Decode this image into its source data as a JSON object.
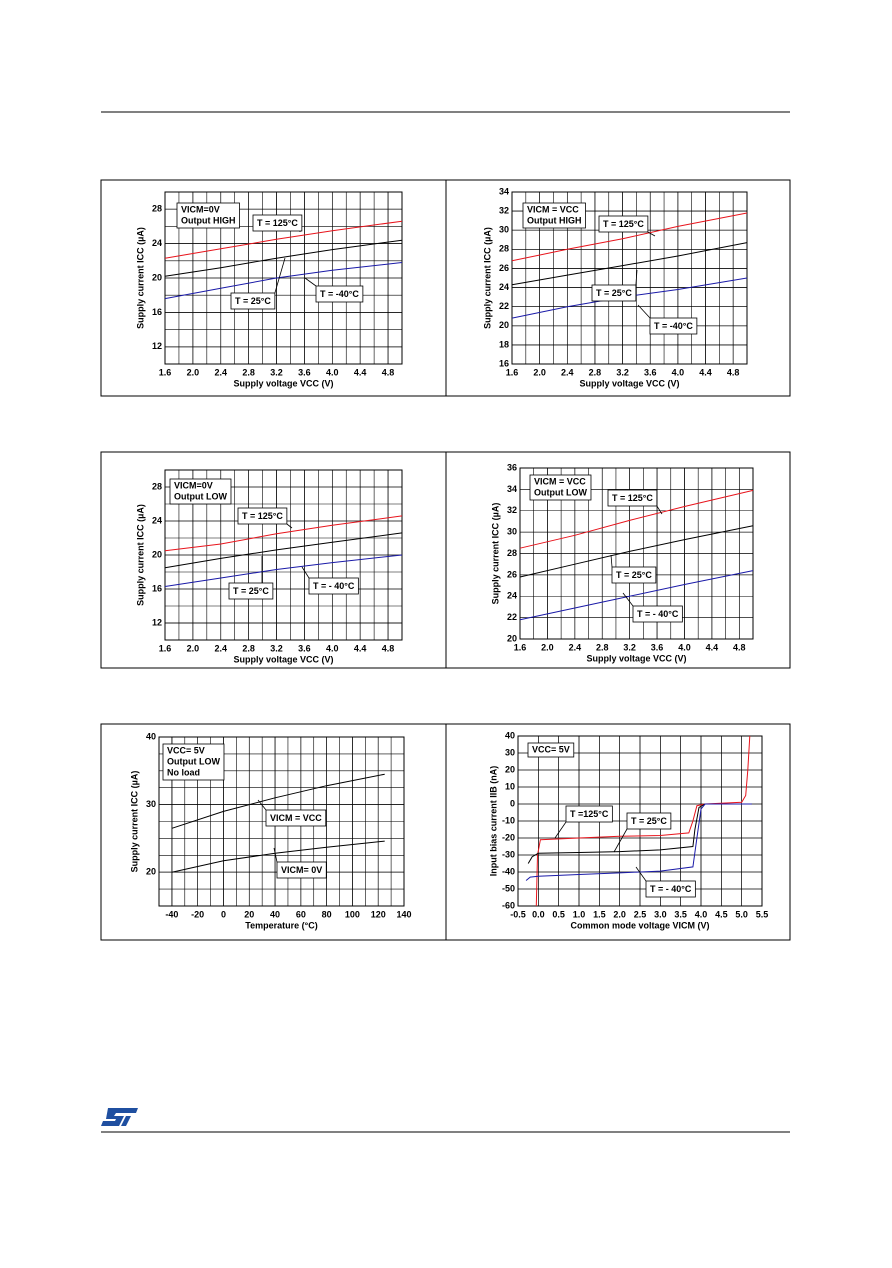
{
  "chart_data": [
    {
      "type": "line",
      "x_label": "Supply voltage VCC (V)",
      "y_label": "Supply current ICC (µA)",
      "annotation": [
        "VICM=0V",
        "Output HIGH"
      ],
      "x": [
        1.6,
        2.4,
        3.2,
        4.0,
        5.0
      ],
      "xlim": [
        1.6,
        5.0
      ],
      "ylim": [
        10,
        30
      ],
      "xticks": [
        1.6,
        {
          "value": 2,
          "label": "2.0"
        },
        2.4,
        2.8,
        3.2,
        3.6,
        {
          "value": 4,
          "label": "4.0"
        },
        4.4,
        4.8
      ],
      "yticks": [
        12,
        16,
        20,
        24,
        28
      ],
      "grid": true,
      "series": [
        {
          "name": "T = 125°C",
          "color": "#e8141c",
          "values": [
            22.3,
            23.4,
            24.5,
            25.5,
            26.6
          ]
        },
        {
          "name": "T = 25°C",
          "color": "#000000",
          "values": [
            20.2,
            21.2,
            22.3,
            23.3,
            24.4
          ]
        },
        {
          "name": "T = -40°C",
          "color": "#1a1aa8",
          "values": [
            17.6,
            18.8,
            20.0,
            20.9,
            21.8
          ]
        }
      ]
    },
    {
      "type": "line",
      "x_label": "Supply voltage VCC (V)",
      "y_label": "Supply current ICC (µA)",
      "annotation": [
        "VICM = VCC",
        "Output HIGH"
      ],
      "x": [
        1.6,
        2.4,
        3.2,
        4.0,
        5.0
      ],
      "xlim": [
        1.6,
        5.0
      ],
      "ylim": [
        16,
        34
      ],
      "xticks": [
        1.6,
        {
          "value": 2,
          "label": "2.0"
        },
        2.4,
        2.8,
        3.2,
        3.6,
        {
          "value": 4,
          "label": "4.0"
        },
        4.4,
        4.8
      ],
      "yticks": [
        16,
        18,
        20,
        22,
        24,
        26,
        28,
        30,
        32,
        34
      ],
      "grid": true,
      "series": [
        {
          "name": "T = 125°C",
          "color": "#e8141c",
          "values": [
            26.8,
            28.0,
            29.1,
            30.4,
            31.8
          ]
        },
        {
          "name": "T = 25°C",
          "color": "#000000",
          "values": [
            24.3,
            25.3,
            26.3,
            27.3,
            28.7
          ]
        },
        {
          "name": "T = -40°C",
          "color": "#1a1aa8",
          "values": [
            20.8,
            22.0,
            23.0,
            23.8,
            25.0
          ]
        }
      ]
    },
    {
      "type": "line",
      "x_label": "Supply voltage VCC (V)",
      "y_label": "Supply current ICC (µA)",
      "annotation": [
        "VICM=0V",
        "Output LOW"
      ],
      "x": [
        1.6,
        2.4,
        3.2,
        4.0,
        5.0
      ],
      "xlim": [
        1.6,
        5.0
      ],
      "ylim": [
        10,
        30
      ],
      "xticks": [
        1.6,
        {
          "value": 2,
          "label": "2.0"
        },
        2.4,
        2.8,
        3.2,
        3.6,
        {
          "value": 4,
          "label": "4.0"
        },
        4.4,
        4.8
      ],
      "yticks": [
        12,
        16,
        20,
        24,
        28
      ],
      "grid": true,
      "series": [
        {
          "name": "T = 125°C",
          "color": "#e8141c",
          "values": [
            20.5,
            21.3,
            22.5,
            23.5,
            24.6
          ]
        },
        {
          "name": "T = 25°C",
          "color": "#000000",
          "values": [
            18.5,
            19.6,
            20.6,
            21.5,
            22.6
          ]
        },
        {
          "name": "T = - 40°C",
          "color": "#1a1aa8",
          "values": [
            16.3,
            17.3,
            18.3,
            19.1,
            20.0
          ]
        }
      ]
    },
    {
      "type": "line",
      "x_label": "Supply voltage VCC (V)",
      "y_label": "Supply current ICC (µA)",
      "annotation": [
        "VICM = VCC",
        "Output LOW"
      ],
      "x": [
        1.6,
        2.4,
        3.2,
        4.0,
        5.0
      ],
      "xlim": [
        1.6,
        5.0
      ],
      "ylim": [
        20,
        36
      ],
      "xticks": [
        1.6,
        {
          "value": 2,
          "label": "2.0"
        },
        2.4,
        2.8,
        3.2,
        3.6,
        {
          "value": 4,
          "label": "4.0"
        },
        4.4,
        4.8
      ],
      "yticks": [
        20,
        22,
        24,
        26,
        28,
        30,
        32,
        34,
        36
      ],
      "grid": true,
      "series": [
        {
          "name": "T = 125°C",
          "color": "#e8141c",
          "values": [
            28.5,
            29.7,
            31.1,
            32.4,
            33.9
          ]
        },
        {
          "name": "T = 25°C",
          "color": "#000000",
          "values": [
            25.8,
            27.0,
            28.2,
            29.3,
            30.6
          ]
        },
        {
          "name": "T = - 40°C",
          "color": "#1a1aa8",
          "values": [
            21.8,
            22.9,
            24.0,
            25.1,
            26.4
          ]
        }
      ]
    },
    {
      "type": "line",
      "x_label": "Temperature (°C)",
      "y_label": "Supply current ICC (µA)",
      "annotation": [
        "VCC= 5V",
        "Output LOW",
        "No load"
      ],
      "x": [
        -40,
        0,
        40,
        80,
        125
      ],
      "xlim": [
        -50,
        140
      ],
      "ylim": [
        15,
        40
      ],
      "xticks": [
        -40,
        -20,
        0,
        20,
        40,
        60,
        80,
        100,
        120,
        140
      ],
      "yticks": [
        20,
        30,
        40
      ],
      "grid": true,
      "series": [
        {
          "name": "VICM = VCC",
          "color": "#000000",
          "values": [
            26.5,
            29.0,
            31.0,
            32.8,
            34.5
          ]
        },
        {
          "name": "VICM= 0V",
          "color": "#000000",
          "values": [
            20.0,
            21.7,
            22.8,
            23.7,
            24.6
          ]
        }
      ]
    },
    {
      "type": "line",
      "x_label": "Common mode voltage VICM (V)",
      "y_label": "Input bias current IIB (nA)",
      "annotation": [
        "VCC= 5V"
      ],
      "xlim": [
        -0.5,
        5.5
      ],
      "ylim": [
        -60,
        40
      ],
      "xticks": [
        -0.5,
        {
          "value": 0,
          "label": "0.0"
        },
        0.5,
        {
          "value": 1,
          "label": "1.0"
        },
        1.5,
        {
          "value": 2,
          "label": "2.0"
        },
        2.5,
        {
          "value": 3,
          "label": "3.0"
        },
        3.5,
        {
          "value": 4,
          "label": "4.0"
        },
        4.5,
        {
          "value": 5,
          "label": "5.0"
        },
        5.5
      ],
      "yticks": [
        -60,
        -50,
        -40,
        -30,
        -20,
        -10,
        0,
        10,
        20,
        30,
        40
      ],
      "grid": true,
      "series": [
        {
          "name": "T =125°C",
          "color": "#e8141c",
          "x": [
            -0.05,
            -0.02,
            0.05,
            1.0,
            2.0,
            3.0,
            3.7,
            3.8,
            3.9,
            4.1,
            5.0,
            5.1,
            5.15,
            5.2
          ],
          "values": [
            -60,
            -30,
            -21,
            -20,
            -19,
            -18.5,
            -17,
            -10,
            -1,
            0,
            1,
            5,
            20,
            40
          ]
        },
        {
          "name": "T = 25°C",
          "color": "#000000",
          "x": [
            -0.25,
            -0.15,
            0.0,
            1.0,
            2.0,
            3.0,
            3.8,
            3.85,
            3.95,
            4.1,
            5.25
          ],
          "values": [
            -35,
            -31,
            -29,
            -28.5,
            -28,
            -27,
            -25,
            -15,
            -2,
            0,
            0
          ]
        },
        {
          "name": "T = - 40°C",
          "color": "#1a1aa8",
          "x": [
            -0.3,
            -0.2,
            0.0,
            1.0,
            2.0,
            3.0,
            3.8,
            3.9,
            4.0,
            4.1,
            5.25
          ],
          "values": [
            -45,
            -43,
            -42.5,
            -41.5,
            -40.5,
            -39.5,
            -37,
            -20,
            -3,
            0,
            0
          ]
        }
      ]
    }
  ]
}
